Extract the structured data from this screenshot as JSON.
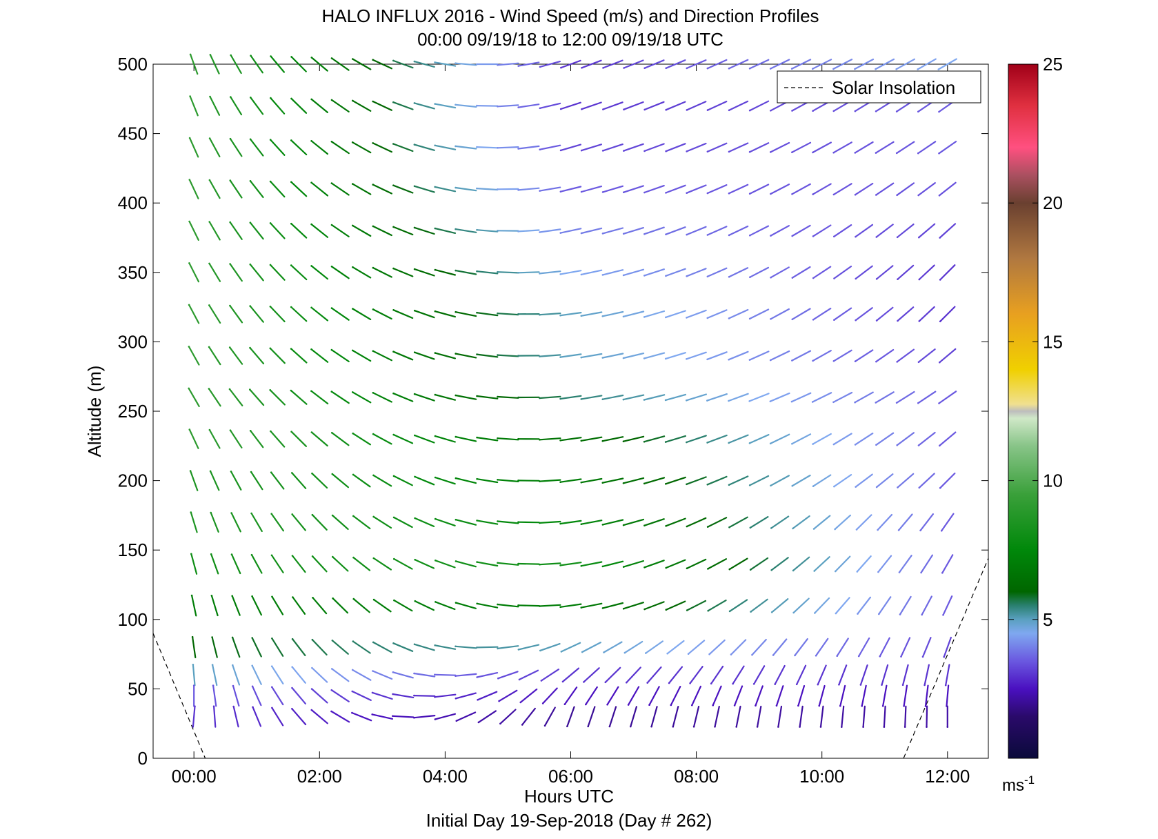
{
  "chart_data": {
    "type": "wind-barbs",
    "title": "HALO INFLUX 2016 - Wind Speed (m/s) and Direction Profiles",
    "subtitle": "00:00 09/19/18 to 12:00 09/19/18  UTC",
    "xlabel": "Hours UTC",
    "xlabel2": "Initial Day 19-Sep-2018 (Day # 262)",
    "ylabel": "Altitude (m)",
    "xlim": [
      -0.65,
      12.65
    ],
    "ylim": [
      0,
      500
    ],
    "x_ticks": [
      0,
      2,
      4,
      6,
      8,
      10,
      12
    ],
    "x_tick_labels": [
      "00:00",
      "02:00",
      "04:00",
      "06:00",
      "08:00",
      "10:00",
      "12:00"
    ],
    "y_ticks": [
      0,
      50,
      100,
      150,
      200,
      250,
      300,
      350,
      400,
      450,
      500
    ],
    "y_tick_labels": [
      "0",
      "50",
      "100",
      "150",
      "200",
      "250",
      "300",
      "350",
      "400",
      "450",
      "500"
    ],
    "colorbar": {
      "min": 0,
      "max": 25,
      "ticks": [
        5,
        10,
        15,
        20,
        25
      ],
      "tick_labels": [
        "5",
        "10",
        "15",
        "20",
        "25"
      ],
      "unit_base": "ms",
      "unit_exp": "-1"
    },
    "legend": {
      "position": "top-right",
      "entries": [
        "Solar Insolation"
      ]
    },
    "solar_insolation": [
      {
        "x": [
          -0.65,
          0.18
        ],
        "y": [
          90,
          0
        ]
      },
      {
        "x": [
          11.3,
          12.65
        ],
        "y": [
          0,
          144
        ]
      }
    ],
    "time_hours": [
      0.0,
      0.33,
      0.67,
      1.0,
      1.33,
      1.67,
      2.0,
      2.33,
      2.67,
      3.0,
      3.33,
      3.67,
      4.0,
      4.33,
      4.67,
      5.0,
      5.33,
      5.67,
      6.0,
      6.33,
      6.67,
      7.0,
      7.33,
      7.67,
      8.0,
      8.33,
      8.67,
      9.0,
      9.33,
      9.67,
      10.0,
      10.33,
      10.67,
      11.0,
      11.33,
      11.67,
      12.0
    ],
    "altitudes_m": [
      500,
      470,
      440,
      410,
      380,
      350,
      320,
      290,
      260,
      230,
      200,
      170,
      140,
      110,
      80,
      60,
      45,
      30
    ],
    "profiles": [
      {
        "altitude": 500,
        "start_speed": 9,
        "mid_speed": 3.0,
        "end_speed": 4.5,
        "start_dir": 340,
        "mid_dir": 250,
        "end_dir": 240
      },
      {
        "altitude": 470,
        "start_speed": 9,
        "mid_speed": 3.0,
        "end_speed": 3.5,
        "start_dir": 338,
        "mid_dir": 252,
        "end_dir": 235
      },
      {
        "altitude": 440,
        "start_speed": 9,
        "mid_speed": 3.2,
        "end_speed": 3.5,
        "start_dir": 336,
        "mid_dir": 254,
        "end_dir": 235
      },
      {
        "altitude": 410,
        "start_speed": 9,
        "mid_speed": 3.5,
        "end_speed": 3.4,
        "start_dir": 335,
        "mid_dir": 256,
        "end_dir": 232
      },
      {
        "altitude": 380,
        "start_speed": 9,
        "mid_speed": 4.0,
        "end_speed": 3.2,
        "start_dir": 334,
        "mid_dir": 258,
        "end_dir": 228
      },
      {
        "altitude": 350,
        "start_speed": 9,
        "mid_speed": 4.5,
        "end_speed": 3.0,
        "start_dir": 333,
        "mid_dir": 260,
        "end_dir": 225
      },
      {
        "altitude": 320,
        "start_speed": 9,
        "mid_speed": 5.0,
        "end_speed": 3.0,
        "start_dir": 332,
        "mid_dir": 262,
        "end_dir": 225
      },
      {
        "altitude": 290,
        "start_speed": 9,
        "mid_speed": 5.0,
        "end_speed": 3.2,
        "start_dir": 331,
        "mid_dir": 262,
        "end_dir": 230
      },
      {
        "altitude": 260,
        "start_speed": 9,
        "mid_speed": 5.5,
        "end_speed": 3.5,
        "start_dir": 330,
        "mid_dir": 262,
        "end_dir": 235
      },
      {
        "altitude": 230,
        "start_speed": 9,
        "mid_speed": 6.5,
        "end_speed": 3.5,
        "start_dir": 335,
        "mid_dir": 262,
        "end_dir": 230
      },
      {
        "altitude": 200,
        "start_speed": 8.5,
        "mid_speed": 7.0,
        "end_speed": 3.5,
        "start_dir": 340,
        "mid_dir": 262,
        "end_dir": 225
      },
      {
        "altitude": 170,
        "start_speed": 8.5,
        "mid_speed": 7.5,
        "end_speed": 3.5,
        "start_dir": 343,
        "mid_dir": 262,
        "end_dir": 215
      },
      {
        "altitude": 140,
        "start_speed": 8,
        "mid_speed": 8.0,
        "end_speed": 3.5,
        "start_dir": 345,
        "mid_dir": 262,
        "end_dir": 210
      },
      {
        "altitude": 110,
        "start_speed": 7,
        "mid_speed": 7.0,
        "end_speed": 3.5,
        "start_dir": 348,
        "mid_dir": 262,
        "end_dir": 205
      },
      {
        "altitude": 80,
        "start_speed": 6,
        "mid_speed": 5.0,
        "end_speed": 3.2,
        "start_dir": 352,
        "mid_dir": 245,
        "end_dir": 200
      },
      {
        "altitude": 60,
        "start_speed": 5,
        "mid_speed": 3.0,
        "end_speed": 3.0,
        "start_dir": 355,
        "mid_dir": 230,
        "end_dir": 190
      },
      {
        "altitude": 45,
        "start_speed": 3.5,
        "mid_speed": 2.5,
        "end_speed": 2.5,
        "start_dir": 0,
        "mid_dir": 215,
        "end_dir": 185
      },
      {
        "altitude": 30,
        "start_speed": 3,
        "mid_speed": 2.0,
        "end_speed": 2.2,
        "start_dir": 5,
        "mid_dir": 200,
        "end_dir": 180
      }
    ]
  }
}
